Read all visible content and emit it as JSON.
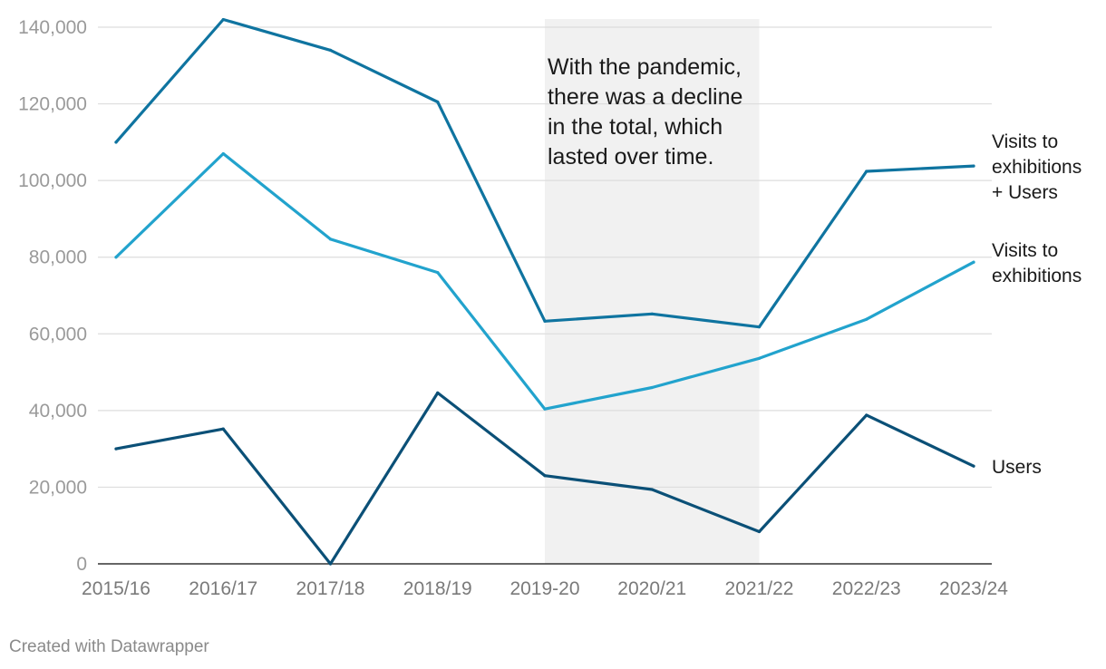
{
  "chart_data": {
    "type": "line",
    "categories": [
      "2015/16",
      "2016/17",
      "2017/18",
      "2018/19",
      "2019-20",
      "2020/21",
      "2021/22",
      "2022/23",
      "2023/24"
    ],
    "ylim": [
      0,
      140000
    ],
    "yticks": [
      0,
      20000,
      40000,
      60000,
      80000,
      100000,
      120000,
      140000
    ],
    "ytick_labels": [
      "0",
      "20,000",
      "40,000",
      "60,000",
      "80,000",
      "100,000",
      "120,000",
      "140,000"
    ],
    "grid": true,
    "series": [
      {
        "key": "total",
        "name_lines": [
          "Visits to",
          "exhibitions",
          "+ Users"
        ],
        "color": "#0f74a0",
        "values": [
          110000,
          142000,
          134000,
          120500,
          63300,
          65200,
          61800,
          102400,
          103800
        ]
      },
      {
        "key": "visits",
        "name_lines": [
          "Visits to",
          "exhibitions"
        ],
        "color": "#22a3cd",
        "values": [
          80000,
          107000,
          84700,
          76000,
          40400,
          46000,
          53600,
          63800,
          78700
        ]
      },
      {
        "key": "users",
        "name_lines": [
          "Users"
        ],
        "color": "#0b5077",
        "values": [
          30000,
          35200,
          0,
          44600,
          23000,
          19400,
          8400,
          38800,
          25500
        ]
      }
    ],
    "highlight_range": [
      "2019-20",
      "2021/22"
    ],
    "highlight_color": "#f1f1f1",
    "annotation_lines": [
      "With the pandemic,",
      "there was a decline",
      "in the total, which",
      "lasted over time."
    ]
  },
  "footer": {
    "credit": "Created with Datawrapper"
  }
}
